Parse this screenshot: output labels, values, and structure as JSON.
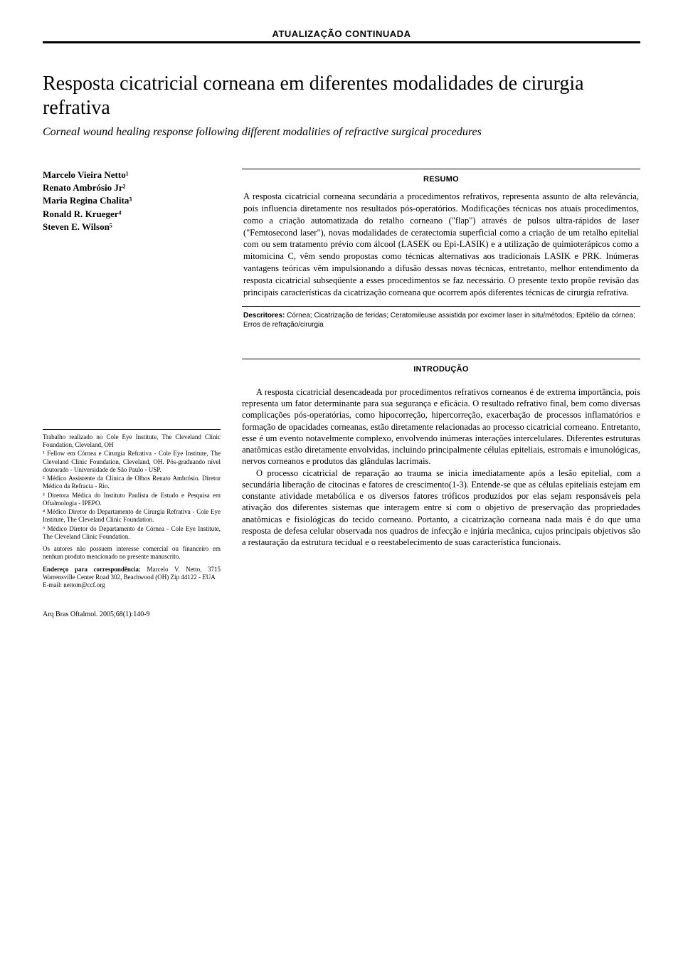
{
  "header_label": "ATUALIZAÇÃO CONTINUADA",
  "title_pt": "Resposta cicatricial corneana em diferentes modalidades de cirurgia refrativa",
  "title_en": "Corneal wound healing response following different modalities of refractive surgical procedures",
  "authors": [
    "Marcelo Vieira Netto¹",
    "Renato Ambrósio Jr²",
    "Maria Regina Chalita³",
    "Ronald R. Krueger⁴",
    "Steven E. Wilson⁵"
  ],
  "abstract": {
    "heading": "RESUMO",
    "body": "A resposta cicatricial corneana secundária a procedimentos refrativos, representa assunto de alta relevância, pois influencia diretamente nos resultados pós-operatórios. Modificações técnicas nos atuais procedimentos, como a criação automatizada do retalho corneano (\"flap\") através de pulsos ultra-rápidos de laser (\"Femtosecond laser\"), novas modalidades de ceratectomia superficial como a criação de um retalho epitelial com ou sem tratamento prévio com álcool (LASEK ou Epi-LASIK) e a utilização de quimioterápicos como a mitomicina C, vêm sendo propostas como técnicas alternativas aos tradicionais LASIK e PRK. Inúmeras vantagens teóricas vêm impulsionando a difusão dessas novas técnicas, entretanto, melhor entendimento da resposta cicatricial subseqüente a esses procedimentos se faz necessário. O presente texto propõe revisão das principais características da cicatrização corneana que ocorrem após diferentes técnicas de cirurgia refrativa."
  },
  "descriptors": {
    "label": "Descritores:",
    "text": " Córnea; Cicatrização de feridas; Ceratomileuse assistida por excimer laser in situ/métodos; Epitélio da córnea; Erros de refração/cirurgia"
  },
  "intro_heading": "INTRODUÇÃO",
  "body_paragraphs": [
    "A resposta cicatricial desencadeada por procedimentos refrativos corneanos é de extrema importância, pois representa um fator determinante para sua segurança e eficácia. O resultado refrativo final, bem como diversas complicações pós-operatórias, como hipocorreção, hipercorreção, exacerbação de processos inflamatórios e formação de opacidades corneanas, estão diretamente relacionadas ao processo cicatricial corneano. Entretanto, esse é um evento notavelmente complexo, envolvendo inúmeras interações intercelulares. Diferentes estruturas anatômicas estão diretamente envolvidas, incluindo principalmente células epiteliais, estromais e imunológicas, nervos corneanos e produtos das glândulas lacrimais.",
    "O processo cicatricial de reparação ao trauma se inicia imediatamente após a lesão epitelial, com a secundária liberação de citocinas e fatores de crescimento(1-3). Entende-se que as células epiteliais estejam em constante atividade metabólica e os diversos fatores tróficos produzidos por elas sejam responsáveis pela ativação dos diferentes sistemas que interagem entre si com o objetivo de preservação das propriedades anatômicas e fisiológicas do tecido corneano. Portanto, a cicatrização corneana nada mais é do que uma resposta de defesa celular observada nos quadros de infecção e injúria mecânica, cujos principais objetivos são a restauração da estrutura tecidual e o reestabelecimento de suas característica funcionais."
  ],
  "affiliations": {
    "intro": "Trabalho realizado no Cole Eye Institute, The Cleveland Clinic Foundation, Cleveland, OH",
    "items": [
      "¹ Fellow em Córnea e Cirurgia Refrativa - Cole Eye Institute, The Cleveland Clinic Foundation, Cleveland, OH. Pós-graduando nível doutorado - Universidade de São Paulo - USP.",
      "² Médico Assistente da Clínica de Olhos Renato Ambrósio. Diretor Médico da Refracta - Rio.",
      "³ Diretora Médica do Instituto Paulista de Estudo e Pesquisa em Oftalmologia - IPEPO.",
      "⁴ Médico Diretor do Departamento de Cirurgia Refrativa - Cole Eye Institute, The Cleveland Clinic Foundation.",
      "⁵ Médico Diretor do Departamento de Córnea - Cole Eye Institute, The Cleveland Clinic Foundation."
    ],
    "note": "Os autores não possuem interesse comercial ou financeiro em nenhum produto mencionado no presente manuscrito.",
    "corr_label": "Endereço para correspondência:",
    "corr_text": " Marcelo V. Netto, 3715 Warrensville Center Road 302, Beachwood (OH) Zip 44122 - EUA",
    "corr_email": "E-mail: nettom@ccf.org"
  },
  "footer": "Arq Bras Oftalmol. 2005;68(1):140-9"
}
